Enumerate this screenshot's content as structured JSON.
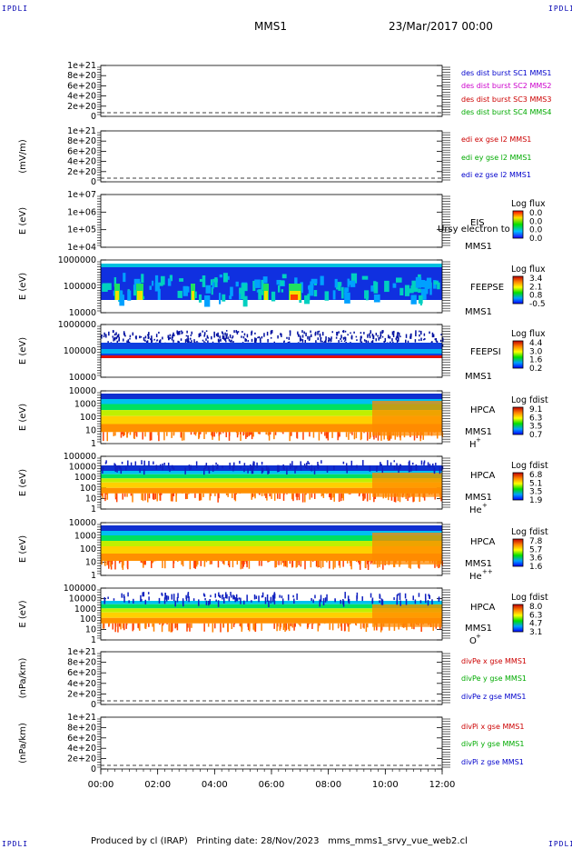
{
  "header": {
    "corner_label": "IPDLI",
    "spacecraft": "MMS1",
    "date": "23/Mar/2017 00:00"
  },
  "footer": {
    "produced_by": "Produced by cl (IRAP)",
    "printing_date": "Printing date: 28/Nov/2023",
    "script_name": "mms_mms1_srvy_vue_web2.cl"
  },
  "time_axis": {
    "ticks": [
      "00:00",
      "02:00",
      "04:00",
      "06:00",
      "08:00",
      "10:00",
      "12:00"
    ]
  },
  "colors": {
    "blue": "#0000cc",
    "magenta": "#cc00cc",
    "red": "#cc0000",
    "green": "#00aa00"
  },
  "chart_data": [
    {
      "type": "line",
      "name": "panel-des-dist",
      "ylabel": "",
      "ticks": [
        "1e+21",
        "8e+20",
        "6e+20",
        "4e+20",
        "2e+20",
        "0"
      ],
      "ylim": [
        0,
        1e+21
      ],
      "x_range": [
        "00:00",
        "12:00"
      ],
      "series": [
        {
          "name": "des dist burst SC1 MMS1",
          "color": "#0000cc",
          "values": [
            0,
            0
          ]
        },
        {
          "name": "des dist burst SC2 MMS2",
          "color": "#cc00cc",
          "values": [
            0,
            0
          ]
        },
        {
          "name": "des dist burst SC3 MMS3",
          "color": "#cc0000",
          "values": [
            0,
            0
          ]
        },
        {
          "name": "des dist burst SC4 MMS4",
          "color": "#00aa00",
          "values": [
            0,
            0
          ]
        }
      ]
    },
    {
      "type": "line",
      "name": "panel-edi",
      "ylabel": "(mV/m)",
      "ticks": [
        "1e+21",
        "8e+20",
        "6e+20",
        "4e+20",
        "2e+20",
        "0"
      ],
      "ylim": [
        0,
        1e+21
      ],
      "x_range": [
        "00:00",
        "12:00"
      ],
      "series": [
        {
          "name": "edi ex gse l2 MMS1",
          "color": "#cc0000",
          "values": [
            0,
            0
          ]
        },
        {
          "name": "edi ey gse l2 MMS1",
          "color": "#00aa00",
          "values": [
            0,
            0
          ]
        },
        {
          "name": "edi ez gse l2 MMS1",
          "color": "#0000cc",
          "values": [
            0,
            0
          ]
        }
      ]
    },
    {
      "type": "heatmap",
      "name": "panel-eis",
      "ylabel": "E (eV)",
      "ticks": [
        "1e+07",
        "1e+06",
        "1e+05",
        "1e+04"
      ],
      "yscale": "log",
      "ylim": [
        10000.0,
        10000000.0
      ],
      "instrument": "EIS",
      "spacecraft": "MMS1",
      "overlay_text": "Ursy electron to",
      "colorbar": {
        "title": "Log flux",
        "ticks": [
          "0.0",
          "0.0",
          "0.0",
          "0.0"
        ]
      }
    },
    {
      "type": "heatmap",
      "name": "panel-feepse",
      "ylabel": "E (eV)",
      "ticks": [
        "1000000",
        "100000",
        "10000"
      ],
      "yscale": "log",
      "ylim": [
        10000.0,
        1000000.0
      ],
      "instrument": "FEEPSE",
      "spacecraft": "MMS1",
      "colorbar": {
        "title": "Log flux",
        "ticks": [
          "3.4",
          "2.1",
          "0.8",
          "-0.5"
        ]
      }
    },
    {
      "type": "heatmap",
      "name": "panel-feepsi",
      "ylabel": "E (eV)",
      "ticks": [
        "1000000",
        "100000",
        "10000"
      ],
      "yscale": "log",
      "ylim": [
        10000.0,
        1000000.0
      ],
      "instrument": "FEEPSI",
      "spacecraft": "MMS1",
      "colorbar": {
        "title": "Log flux",
        "ticks": [
          "4.4",
          "3.0",
          "1.6",
          "0.2"
        ]
      }
    },
    {
      "type": "heatmap",
      "name": "panel-hpca-h",
      "ylabel": "E (eV)",
      "ticks": [
        "10000",
        "1000",
        "100",
        "10",
        "1"
      ],
      "yscale": "log",
      "ylim": [
        1,
        40000.0
      ],
      "instrument": "HPCA",
      "spacecraft": "MMS1",
      "species": "H",
      "charge": "+",
      "colorbar": {
        "title": "Log fdist",
        "ticks": [
          "9.1",
          "6.3",
          "3.5",
          "0.7"
        ]
      }
    },
    {
      "type": "heatmap",
      "name": "panel-hpca-he",
      "ylabel": "E (eV)",
      "ticks": [
        "100000",
        "10000",
        "1000",
        "100",
        "10",
        "1"
      ],
      "yscale": "log",
      "ylim": [
        1,
        100000.0
      ],
      "instrument": "HPCA",
      "spacecraft": "MMS1",
      "species": "He",
      "charge": "+",
      "colorbar": {
        "title": "Log fdist",
        "ticks": [
          "6.8",
          "5.1",
          "3.5",
          "1.9"
        ]
      }
    },
    {
      "type": "heatmap",
      "name": "panel-hpca-he2",
      "ylabel": "E (eV)",
      "ticks": [
        "10000",
        "1000",
        "100",
        "10",
        "1"
      ],
      "yscale": "log",
      "ylim": [
        1,
        40000.0
      ],
      "instrument": "HPCA",
      "spacecraft": "MMS1",
      "species": "He",
      "charge": "++",
      "colorbar": {
        "title": "Log fdist",
        "ticks": [
          "7.8",
          "5.7",
          "3.6",
          "1.6"
        ]
      }
    },
    {
      "type": "heatmap",
      "name": "panel-hpca-o",
      "ylabel": "E (eV)",
      "ticks": [
        "100000",
        "10000",
        "1000",
        "100",
        "10",
        "1"
      ],
      "yscale": "log",
      "ylim": [
        1,
        100000.0
      ],
      "instrument": "HPCA",
      "spacecraft": "MMS1",
      "species": "O",
      "charge": "+",
      "colorbar": {
        "title": "Log fdist",
        "ticks": [
          "8.0",
          "6.3",
          "4.7",
          "3.1"
        ]
      }
    },
    {
      "type": "line",
      "name": "panel-divpe",
      "ylabel": "(nPa/km)",
      "ticks": [
        "1e+21",
        "8e+20",
        "6e+20",
        "4e+20",
        "2e+20",
        "0"
      ],
      "ylim": [
        0,
        1e+21
      ],
      "x_range": [
        "00:00",
        "12:00"
      ],
      "series": [
        {
          "name": "divPe x gse MMS1",
          "color": "#cc0000",
          "values": [
            0,
            0
          ]
        },
        {
          "name": "divPe y gse MMS1",
          "color": "#00aa00",
          "values": [
            0,
            0
          ]
        },
        {
          "name": "divPe z gse MMS1",
          "color": "#0000cc",
          "values": [
            0,
            0
          ]
        }
      ]
    },
    {
      "type": "line",
      "name": "panel-divpi",
      "ylabel": "(nPa/km)",
      "ticks": [
        "1e+21",
        "8e+20",
        "6e+20",
        "4e+20",
        "2e+20",
        "0"
      ],
      "ylim": [
        0,
        1e+21
      ],
      "x_range": [
        "00:00",
        "12:00"
      ],
      "series": [
        {
          "name": "divPi x gse MMS1",
          "color": "#cc0000",
          "values": [
            0,
            0
          ]
        },
        {
          "name": "divPi y gse MMS1",
          "color": "#00aa00",
          "values": [
            0,
            0
          ]
        },
        {
          "name": "divPi z gse MMS1",
          "color": "#0000cc",
          "values": [
            0,
            0
          ]
        }
      ]
    }
  ]
}
